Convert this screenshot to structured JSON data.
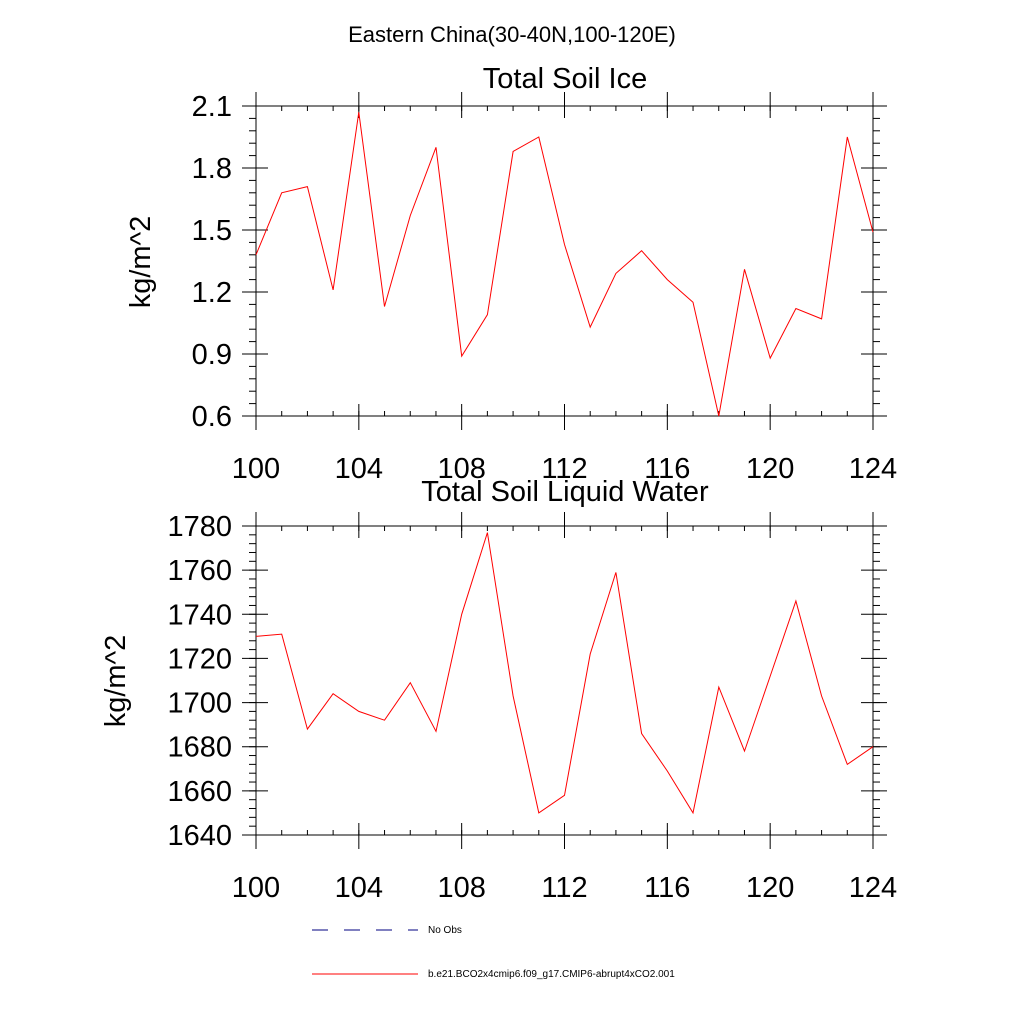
{
  "header": {
    "title": "Eastern China(30-40N,100-120E)"
  },
  "chart_data": [
    {
      "type": "line",
      "title": "Total Soil Ice",
      "xlabel": "",
      "ylabel": "kg/m^2",
      "xlim": [
        100,
        124
      ],
      "ylim": [
        0.6,
        2.1
      ],
      "xticks": [
        "100",
        "104",
        "108",
        "112",
        "116",
        "120",
        "124"
      ],
      "xtick_values": [
        100,
        104,
        108,
        112,
        116,
        120,
        124
      ],
      "yticks": [
        "0.6",
        "0.9",
        "1.2",
        "1.5",
        "1.8",
        "2.1"
      ],
      "ytick_values": [
        0.6,
        0.9,
        1.2,
        1.5,
        1.8,
        2.1
      ],
      "x": [
        100,
        101,
        102,
        103,
        104,
        105,
        106,
        107,
        108,
        109,
        110,
        111,
        112,
        113,
        114,
        115,
        116,
        117,
        118,
        119,
        120,
        121,
        122,
        123,
        124
      ],
      "series": [
        {
          "name": "b.e21.BCO2x4cmip6.f09_g17.CMIP6-abrupt4xCO2.001",
          "color": "#ff0000",
          "values": [
            1.38,
            1.68,
            1.71,
            1.21,
            2.07,
            1.13,
            1.57,
            1.9,
            0.89,
            1.09,
            1.88,
            1.95,
            1.43,
            1.03,
            1.29,
            1.4,
            1.26,
            1.15,
            0.6,
            1.31,
            0.88,
            1.12,
            1.07,
            1.95,
            1.49
          ]
        }
      ]
    },
    {
      "type": "line",
      "title": "Total Soil Liquid Water",
      "xlabel": "",
      "ylabel": "kg/m^2",
      "xlim": [
        100,
        124
      ],
      "ylim": [
        1640,
        1780
      ],
      "xticks": [
        "100",
        "104",
        "108",
        "112",
        "116",
        "120",
        "124"
      ],
      "xtick_values": [
        100,
        104,
        108,
        112,
        116,
        120,
        124
      ],
      "yticks": [
        "1640",
        "1660",
        "1680",
        "1700",
        "1720",
        "1740",
        "1760",
        "1780"
      ],
      "ytick_values": [
        1640,
        1660,
        1680,
        1700,
        1720,
        1740,
        1760,
        1780
      ],
      "x": [
        100,
        101,
        102,
        103,
        104,
        105,
        106,
        107,
        108,
        109,
        110,
        111,
        112,
        113,
        114,
        115,
        116,
        117,
        118,
        119,
        120,
        121,
        122,
        123,
        124
      ],
      "series": [
        {
          "name": "b.e21.BCO2x4cmip6.f09_g17.CMIP6-abrupt4xCO2.001",
          "color": "#ff0000",
          "values": [
            1730,
            1731,
            1688,
            1704,
            1696,
            1692,
            1709,
            1687,
            1740,
            1777,
            1703,
            1650,
            1658,
            1722,
            1759,
            1686,
            1669,
            1650,
            1707,
            1678,
            1712,
            1746,
            1703,
            1672,
            1680
          ]
        }
      ]
    }
  ],
  "legend": {
    "items": [
      {
        "label": "No Obs",
        "style": "dashed",
        "color": "#000080"
      },
      {
        "label": "b.e21.BCO2x4cmip6.f09_g17.CMIP6-abrupt4xCO2.001",
        "style": "solid",
        "color": "#ff0000"
      }
    ]
  }
}
